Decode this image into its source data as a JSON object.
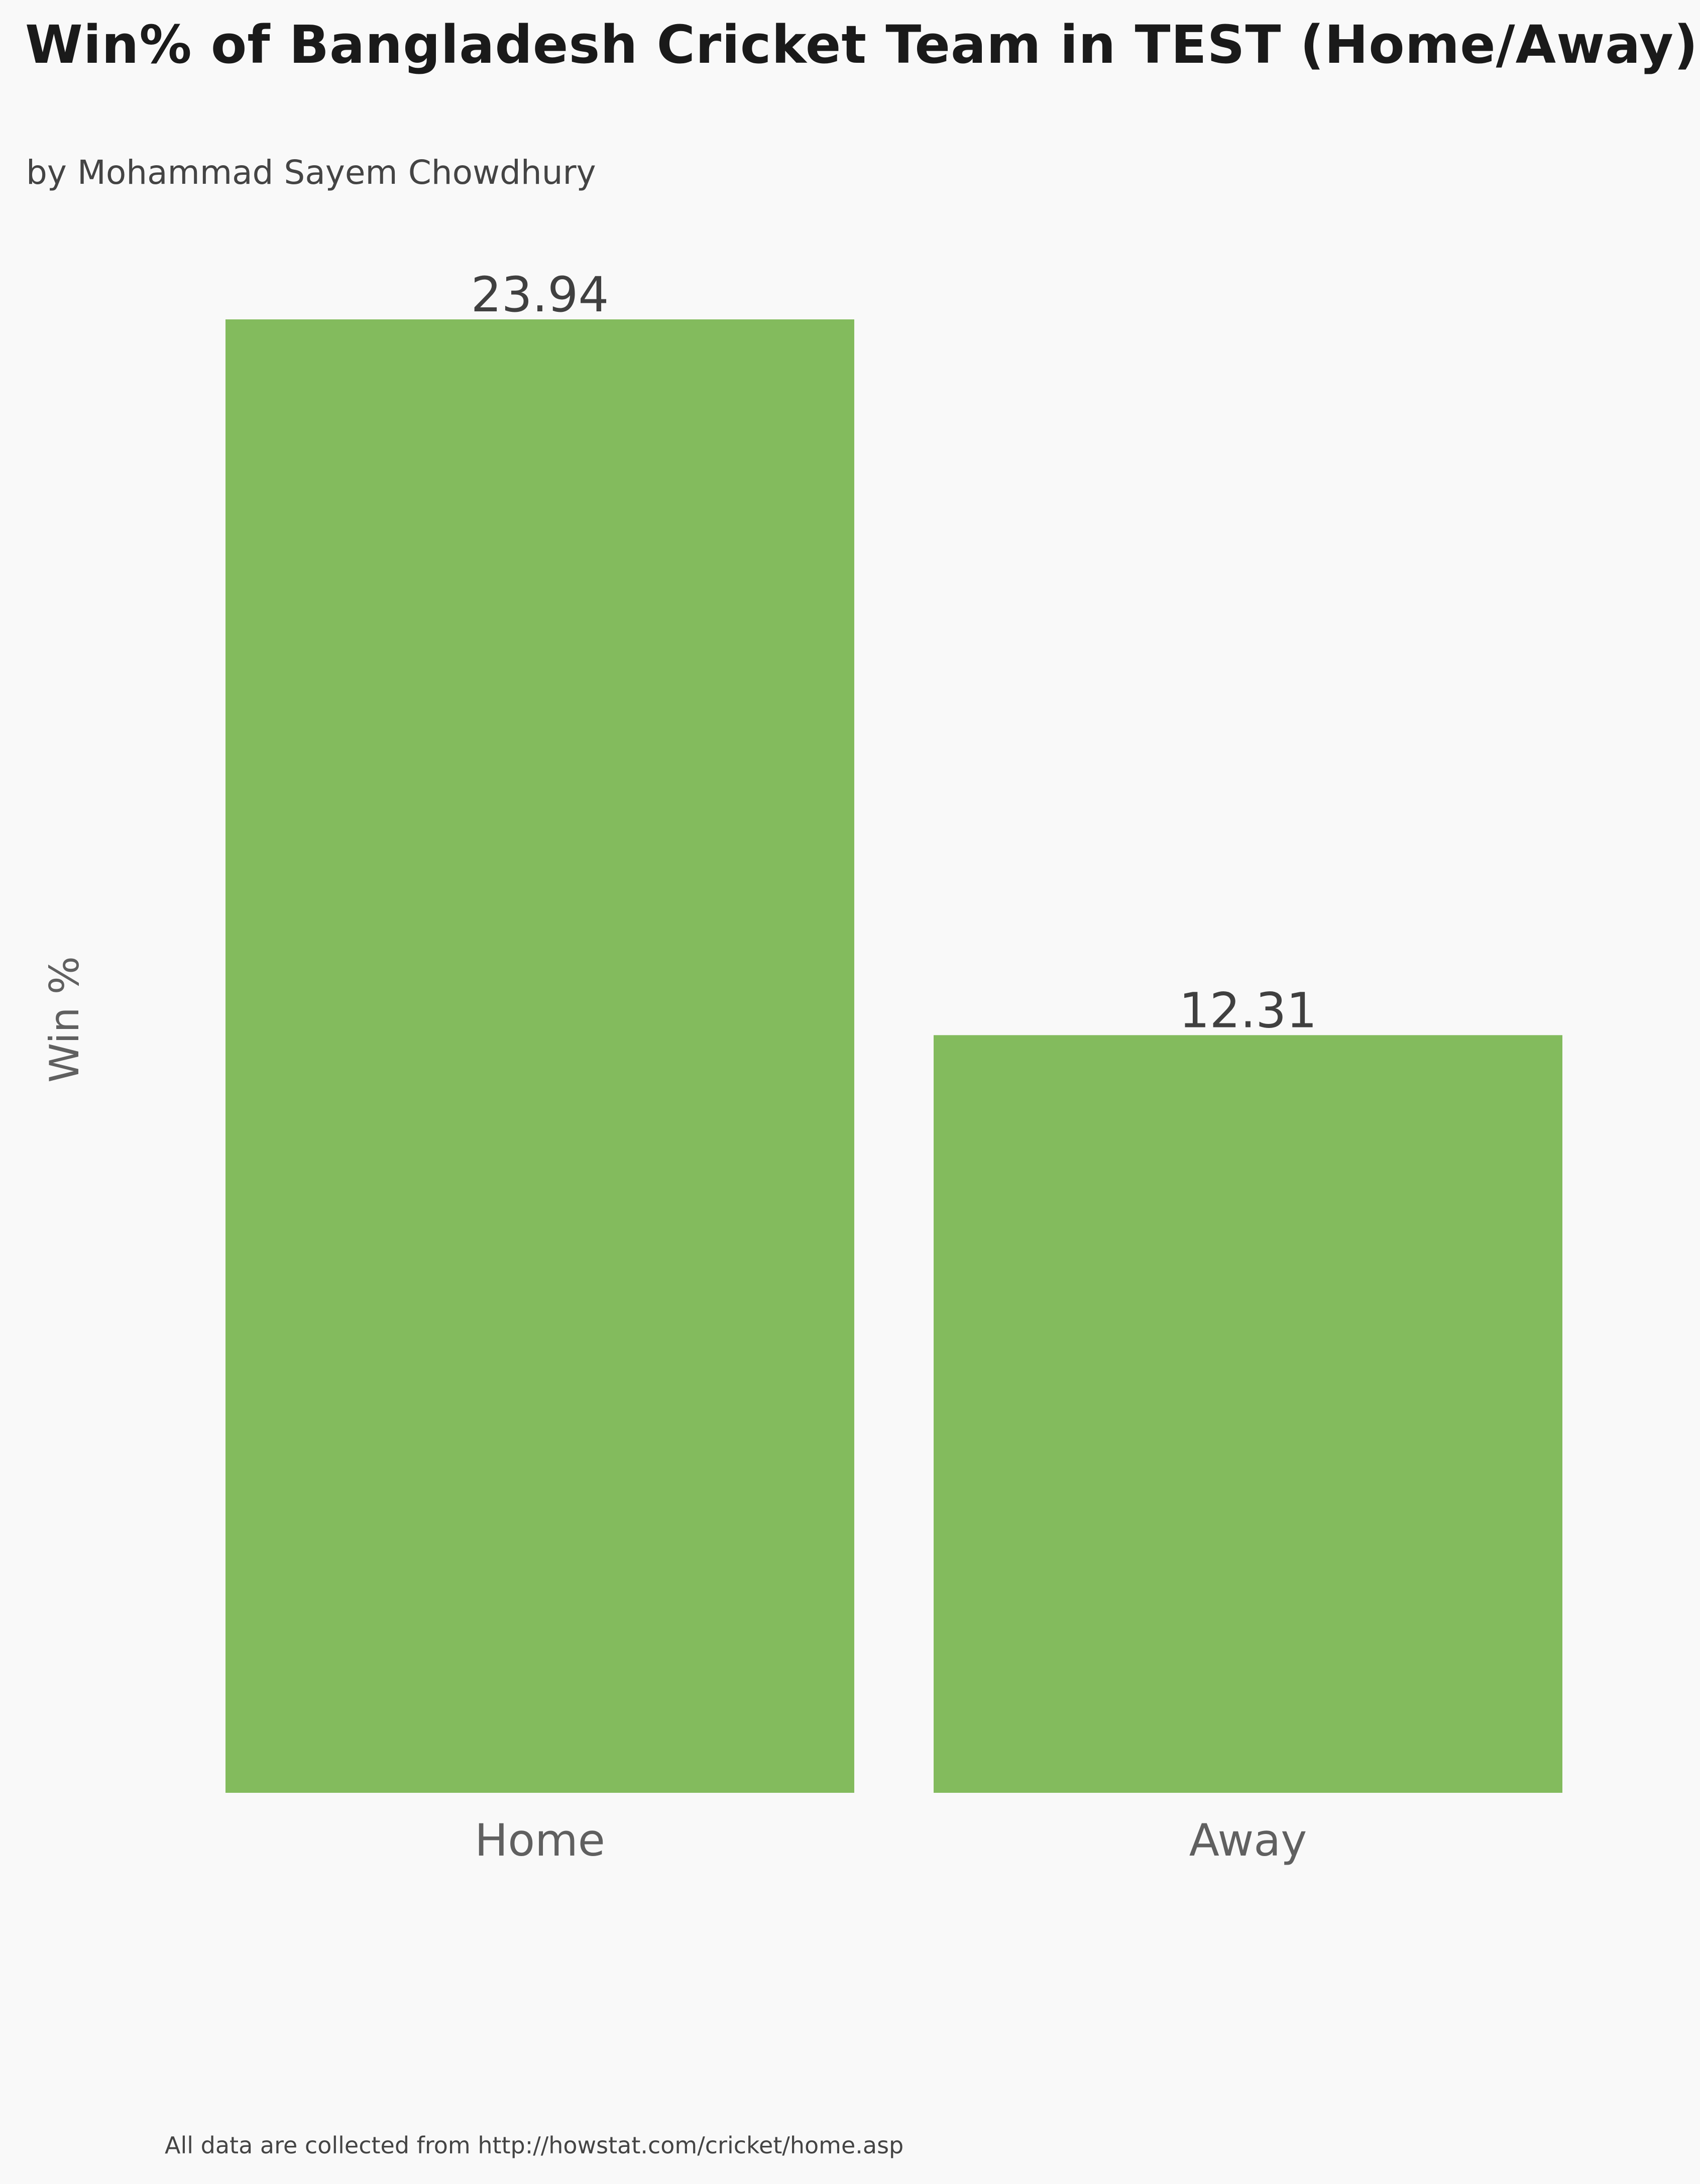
{
  "header": {
    "title": "Win% of Bangladesh Cricket Team in TEST (Home/Away)",
    "subtitle": "by Mohammad Sayem Chowdhury"
  },
  "footer": {
    "note": "All data are collected from http://howstat.com/cricket/home.asp"
  },
  "chart_data": {
    "type": "bar",
    "title": "Win% of Bangladesh Cricket Team in TEST (Home/Away)",
    "subtitle": "by Mohammad Sayem Chowdhury",
    "xlabel": "",
    "ylabel": "Win %",
    "categories": [
      "Home",
      "Away"
    ],
    "values": [
      23.94,
      12.31
    ],
    "value_labels": [
      "23.94",
      "12.31"
    ],
    "ylim": [
      0,
      23.94
    ],
    "grid": false,
    "bar_color": "#83bb5d",
    "background_color": "#f9f9f9"
  }
}
